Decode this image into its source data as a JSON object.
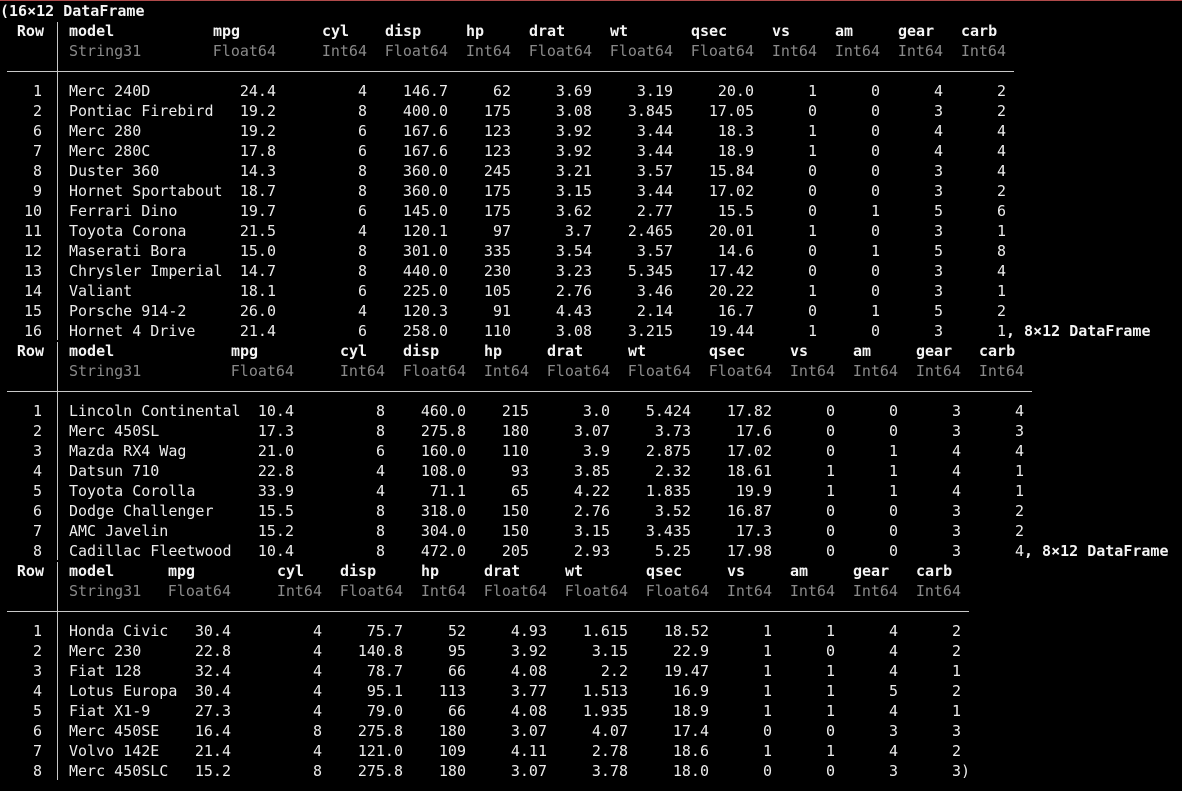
{
  "terminal": {
    "open_paren": "(",
    "close_paren": ")",
    "sep_1": ", ",
    "sep_2": ", "
  },
  "dataframes": [
    {
      "label": "16×12 DataFrame",
      "row_header": "Row",
      "columns": [
        {
          "name": "model",
          "type": "String31"
        },
        {
          "name": "mpg",
          "type": "Float64"
        },
        {
          "name": "cyl",
          "type": "Int64"
        },
        {
          "name": "disp",
          "type": "Float64"
        },
        {
          "name": "hp",
          "type": "Int64"
        },
        {
          "name": "drat",
          "type": "Float64"
        },
        {
          "name": "wt",
          "type": "Float64"
        },
        {
          "name": "qsec",
          "type": "Float64"
        },
        {
          "name": "vs",
          "type": "Int64"
        },
        {
          "name": "am",
          "type": "Int64"
        },
        {
          "name": "gear",
          "type": "Int64"
        },
        {
          "name": "carb",
          "type": "Int64"
        }
      ],
      "rows": [
        [
          "1",
          "Merc 240D",
          "24.4",
          "4",
          "146.7",
          "62",
          "3.69",
          "3.19",
          "20.0",
          "1",
          "0",
          "4",
          "2"
        ],
        [
          "2",
          "Pontiac Firebird",
          "19.2",
          "8",
          "400.0",
          "175",
          "3.08",
          "3.845",
          "17.05",
          "0",
          "0",
          "3",
          "2"
        ],
        [
          "6",
          "Merc 280",
          "19.2",
          "6",
          "167.6",
          "123",
          "3.92",
          "3.44",
          "18.3",
          "1",
          "0",
          "4",
          "4"
        ],
        [
          "7",
          "Merc 280C",
          "17.8",
          "6",
          "167.6",
          "123",
          "3.92",
          "3.44",
          "18.9",
          "1",
          "0",
          "4",
          "4"
        ],
        [
          "8",
          "Duster 360",
          "14.3",
          "8",
          "360.0",
          "245",
          "3.21",
          "3.57",
          "15.84",
          "0",
          "0",
          "3",
          "4"
        ],
        [
          "9",
          "Hornet Sportabout",
          "18.7",
          "8",
          "360.0",
          "175",
          "3.15",
          "3.44",
          "17.02",
          "0",
          "0",
          "3",
          "2"
        ],
        [
          "10",
          "Ferrari Dino",
          "19.7",
          "6",
          "145.0",
          "175",
          "3.62",
          "2.77",
          "15.5",
          "0",
          "1",
          "5",
          "6"
        ],
        [
          "11",
          "Toyota Corona",
          "21.5",
          "4",
          "120.1",
          "97",
          "3.7",
          "2.465",
          "20.01",
          "1",
          "0",
          "3",
          "1"
        ],
        [
          "12",
          "Maserati Bora",
          "15.0",
          "8",
          "301.0",
          "335",
          "3.54",
          "3.57",
          "14.6",
          "0",
          "1",
          "5",
          "8"
        ],
        [
          "13",
          "Chrysler Imperial",
          "14.7",
          "8",
          "440.0",
          "230",
          "3.23",
          "5.345",
          "17.42",
          "0",
          "0",
          "3",
          "4"
        ],
        [
          "14",
          "Valiant",
          "18.1",
          "6",
          "225.0",
          "105",
          "2.76",
          "3.46",
          "20.22",
          "1",
          "0",
          "3",
          "1"
        ],
        [
          "15",
          "Porsche 914-2",
          "26.0",
          "4",
          "120.3",
          "91",
          "4.43",
          "2.14",
          "16.7",
          "0",
          "1",
          "5",
          "2"
        ],
        [
          "16",
          "Hornet 4 Drive",
          "21.4",
          "6",
          "258.0",
          "110",
          "3.08",
          "3.215",
          "19.44",
          "1",
          "0",
          "3",
          "1"
        ]
      ]
    },
    {
      "label": "8×12 DataFrame",
      "row_header": "Row",
      "columns": [
        {
          "name": "model",
          "type": "String31"
        },
        {
          "name": "mpg",
          "type": "Float64"
        },
        {
          "name": "cyl",
          "type": "Int64"
        },
        {
          "name": "disp",
          "type": "Float64"
        },
        {
          "name": "hp",
          "type": "Int64"
        },
        {
          "name": "drat",
          "type": "Float64"
        },
        {
          "name": "wt",
          "type": "Float64"
        },
        {
          "name": "qsec",
          "type": "Float64"
        },
        {
          "name": "vs",
          "type": "Int64"
        },
        {
          "name": "am",
          "type": "Int64"
        },
        {
          "name": "gear",
          "type": "Int64"
        },
        {
          "name": "carb",
          "type": "Int64"
        }
      ],
      "rows": [
        [
          "1",
          "Lincoln Continental",
          "10.4",
          "8",
          "460.0",
          "215",
          "3.0",
          "5.424",
          "17.82",
          "0",
          "0",
          "3",
          "4"
        ],
        [
          "2",
          "Merc 450SL",
          "17.3",
          "8",
          "275.8",
          "180",
          "3.07",
          "3.73",
          "17.6",
          "0",
          "0",
          "3",
          "3"
        ],
        [
          "3",
          "Mazda RX4 Wag",
          "21.0",
          "6",
          "160.0",
          "110",
          "3.9",
          "2.875",
          "17.02",
          "0",
          "1",
          "4",
          "4"
        ],
        [
          "4",
          "Datsun 710",
          "22.8",
          "4",
          "108.0",
          "93",
          "3.85",
          "2.32",
          "18.61",
          "1",
          "1",
          "4",
          "1"
        ],
        [
          "5",
          "Toyota Corolla",
          "33.9",
          "4",
          "71.1",
          "65",
          "4.22",
          "1.835",
          "19.9",
          "1",
          "1",
          "4",
          "1"
        ],
        [
          "6",
          "Dodge Challenger",
          "15.5",
          "8",
          "318.0",
          "150",
          "2.76",
          "3.52",
          "16.87",
          "0",
          "0",
          "3",
          "2"
        ],
        [
          "7",
          "AMC Javelin",
          "15.2",
          "8",
          "304.0",
          "150",
          "3.15",
          "3.435",
          "17.3",
          "0",
          "0",
          "3",
          "2"
        ],
        [
          "8",
          "Cadillac Fleetwood",
          "10.4",
          "8",
          "472.0",
          "205",
          "2.93",
          "5.25",
          "17.98",
          "0",
          "0",
          "3",
          "4"
        ]
      ]
    },
    {
      "label": "8×12 DataFrame",
      "row_header": "Row",
      "columns": [
        {
          "name": "model",
          "type": "String31"
        },
        {
          "name": "mpg",
          "type": "Float64"
        },
        {
          "name": "cyl",
          "type": "Int64"
        },
        {
          "name": "disp",
          "type": "Float64"
        },
        {
          "name": "hp",
          "type": "Int64"
        },
        {
          "name": "drat",
          "type": "Float64"
        },
        {
          "name": "wt",
          "type": "Float64"
        },
        {
          "name": "qsec",
          "type": "Float64"
        },
        {
          "name": "vs",
          "type": "Int64"
        },
        {
          "name": "am",
          "type": "Int64"
        },
        {
          "name": "gear",
          "type": "Int64"
        },
        {
          "name": "carb",
          "type": "Int64"
        }
      ],
      "rows": [
        [
          "1",
          "Honda Civic",
          "30.4",
          "4",
          "75.7",
          "52",
          "4.93",
          "1.615",
          "18.52",
          "1",
          "1",
          "4",
          "2"
        ],
        [
          "2",
          "Merc 230",
          "22.8",
          "4",
          "140.8",
          "95",
          "3.92",
          "3.15",
          "22.9",
          "1",
          "0",
          "4",
          "2"
        ],
        [
          "3",
          "Fiat 128",
          "32.4",
          "4",
          "78.7",
          "66",
          "4.08",
          "2.2",
          "19.47",
          "1",
          "1",
          "4",
          "1"
        ],
        [
          "4",
          "Lotus Europa",
          "30.4",
          "4",
          "95.1",
          "113",
          "3.77",
          "1.513",
          "16.9",
          "1",
          "1",
          "5",
          "2"
        ],
        [
          "5",
          "Fiat X1-9",
          "27.3",
          "4",
          "79.0",
          "66",
          "4.08",
          "1.935",
          "18.9",
          "1",
          "1",
          "4",
          "1"
        ],
        [
          "6",
          "Merc 450SE",
          "16.4",
          "8",
          "275.8",
          "180",
          "3.07",
          "4.07",
          "17.4",
          "0",
          "0",
          "3",
          "3"
        ],
        [
          "7",
          "Volvo 142E",
          "21.4",
          "4",
          "121.0",
          "109",
          "4.11",
          "2.78",
          "18.6",
          "1",
          "1",
          "4",
          "2"
        ],
        [
          "8",
          "Merc 450SLC",
          "15.2",
          "8",
          "275.8",
          "180",
          "3.07",
          "3.78",
          "18.0",
          "0",
          "0",
          "3",
          "3"
        ]
      ]
    }
  ]
}
